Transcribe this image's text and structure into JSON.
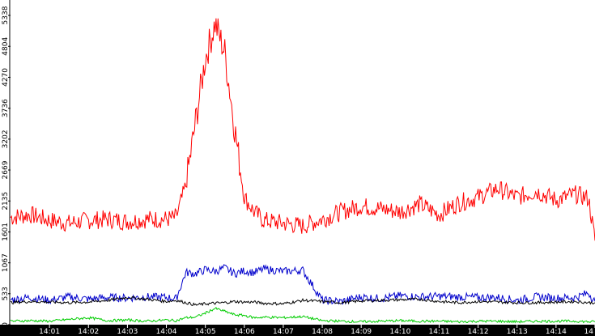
{
  "chart_data": {
    "type": "line",
    "title": "",
    "xlabel": "",
    "ylabel": "",
    "ylim": [
      0,
      5604
    ],
    "xlim": [
      "14:00:00",
      "14:15:00"
    ],
    "grid": false,
    "legend": "none",
    "y_ticks": [
      "0",
      "533",
      "1067",
      "1601",
      "2135",
      "2669",
      "3202",
      "3736",
      "4270",
      "4804",
      "5338"
    ],
    "x_ticks": [
      "14:01",
      "14:02",
      "14:03",
      "14:04",
      "14:05",
      "14:06",
      "14:07",
      "14:08",
      "14:09",
      "14:10",
      "14:11",
      "14:12",
      "14:13",
      "14:14",
      "14"
    ],
    "x_times": [
      "14:00:00",
      "14:00:30",
      "14:01:00",
      "14:01:30",
      "14:02:00",
      "14:02:30",
      "14:03:00",
      "14:03:30",
      "14:04:00",
      "14:04:15",
      "14:04:30",
      "14:04:45",
      "14:05:00",
      "14:05:15",
      "14:05:30",
      "14:05:45",
      "14:06:00",
      "14:06:15",
      "14:06:30",
      "14:07:00",
      "14:07:30",
      "14:08:00",
      "14:08:30",
      "14:09:00",
      "14:09:30",
      "14:10:00",
      "14:10:30",
      "14:11:00",
      "14:11:30",
      "14:12:00",
      "14:12:30",
      "14:13:00",
      "14:13:30",
      "14:14:00",
      "14:14:30",
      "14:14:50",
      "14:15:00"
    ],
    "series": [
      {
        "color": "#ff0000",
        "values": [
          1850,
          1900,
          1800,
          1750,
          1800,
          1820,
          1780,
          1820,
          1820,
          1850,
          2400,
          3500,
          4600,
          5200,
          4700,
          3400,
          2200,
          1950,
          1800,
          1750,
          1700,
          1820,
          1950,
          2050,
          2000,
          1950,
          2080,
          1900,
          2100,
          2200,
          2350,
          2200,
          2300,
          2150,
          2250,
          2180,
          1450
        ]
      },
      {
        "color": "#0000cc",
        "values": [
          430,
          470,
          420,
          480,
          440,
          470,
          460,
          480,
          470,
          450,
          900,
          880,
          950,
          920,
          980,
          880,
          930,
          900,
          960,
          920,
          940,
          420,
          400,
          480,
          450,
          500,
          480,
          490,
          480,
          470,
          470,
          420,
          480,
          460,
          470,
          550,
          400
        ]
      },
      {
        "color": "#000000",
        "values": [
          380,
          400,
          390,
          380,
          390,
          420,
          470,
          440,
          400,
          420,
          380,
          340,
          360,
          370,
          380,
          400,
          390,
          390,
          370,
          360,
          420,
          400,
          380,
          410,
          420,
          430,
          440,
          400,
          380,
          400,
          390,
          380,
          380,
          390,
          400,
          380,
          380
        ]
      },
      {
        "color": "#00cc00",
        "values": [
          60,
          70,
          60,
          90,
          120,
          70,
          80,
          60,
          80,
          70,
          120,
          130,
          200,
          280,
          230,
          170,
          160,
          120,
          130,
          120,
          140,
          70,
          60,
          50,
          60,
          70,
          60,
          60,
          50,
          60,
          60,
          50,
          60,
          60,
          60,
          50,
          50
        ]
      }
    ]
  }
}
